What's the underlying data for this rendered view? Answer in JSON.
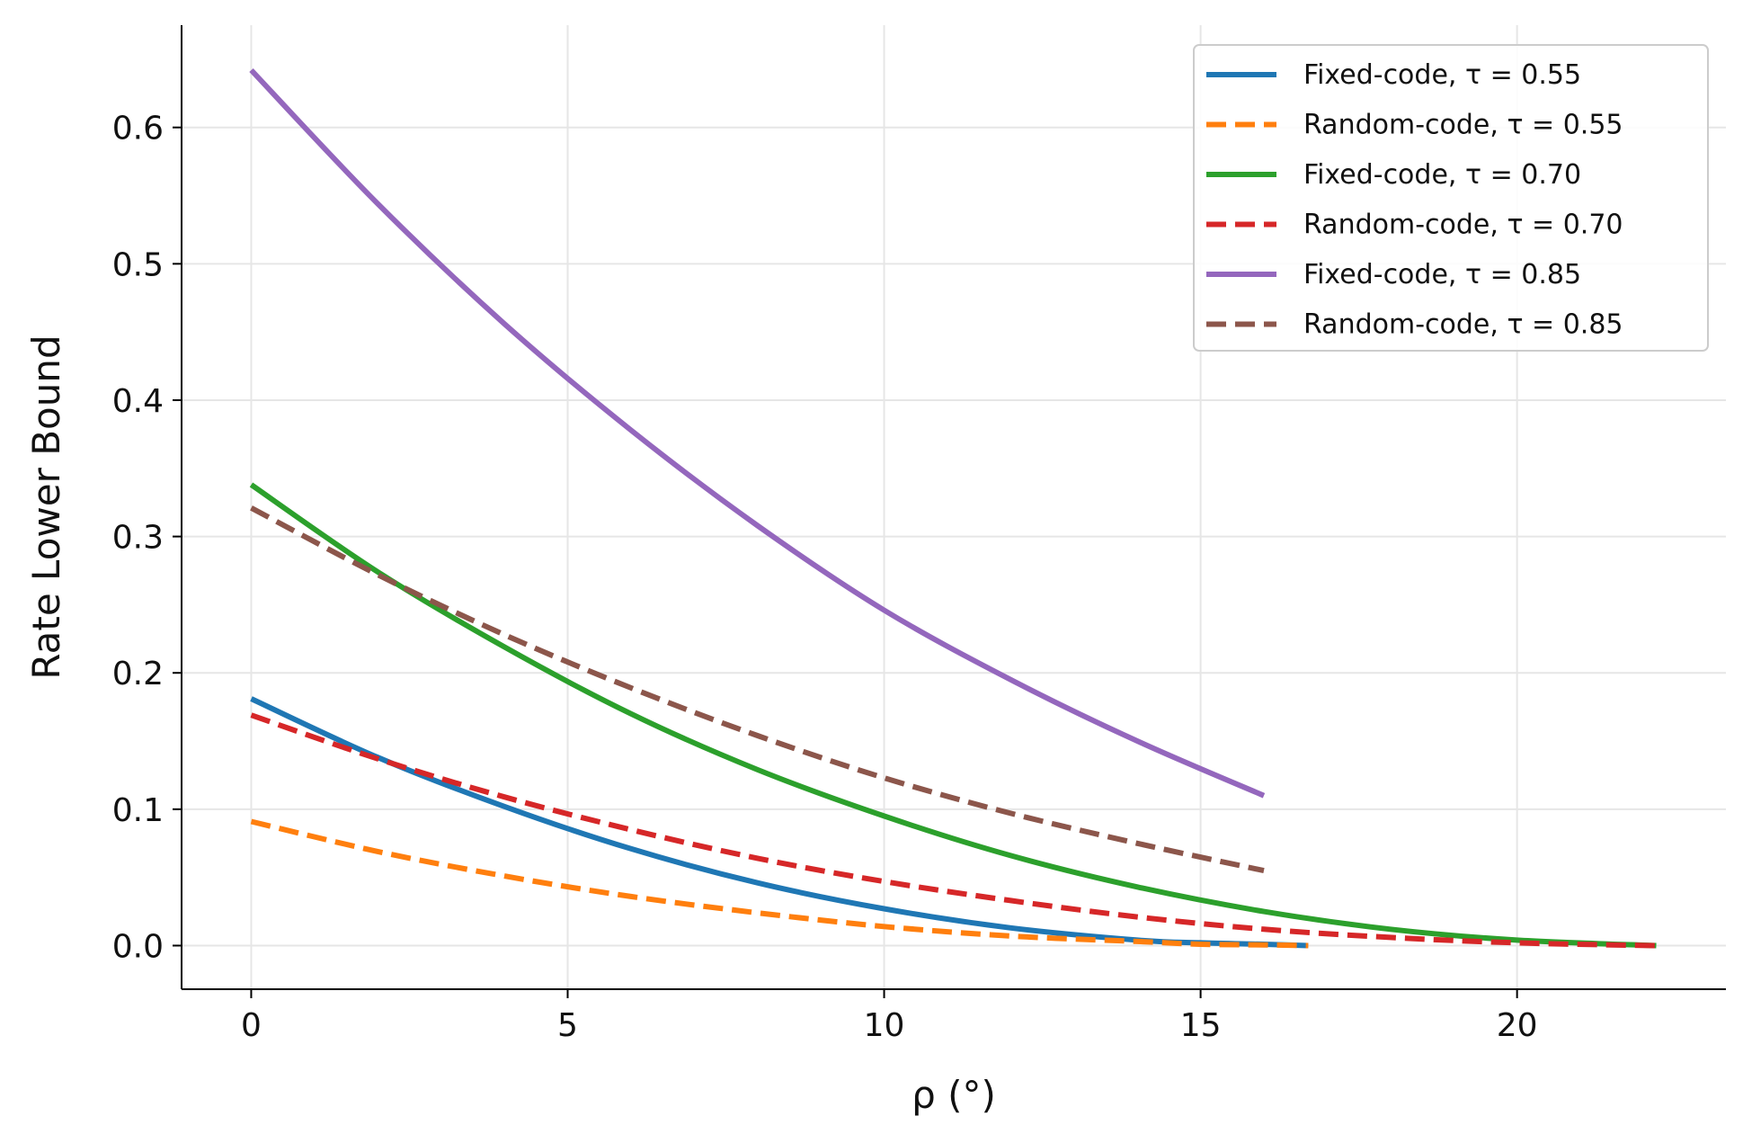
{
  "chart_data": {
    "type": "line",
    "title": "",
    "xlabel": "ρ (°)",
    "ylabel": "Rate Lower Bound",
    "xlim": [
      -1.1,
      23.3
    ],
    "ylim": [
      -0.032,
      0.675
    ],
    "xticks": [
      0,
      5,
      10,
      15,
      20
    ],
    "yticks": [
      0.0,
      0.1,
      0.2,
      0.3,
      0.4,
      0.5,
      0.6
    ],
    "grid": true,
    "legend_position": "top-right",
    "series": [
      {
        "name": "Fixed-code, τ = 0.55",
        "color": "#1f77b4",
        "dash": "solid",
        "x": [
          0,
          2,
          4,
          6,
          8,
          10,
          12,
          14,
          15,
          16,
          16.7
        ],
        "y": [
          0.181,
          0.138,
          0.102,
          0.071,
          0.046,
          0.027,
          0.013,
          0.004,
          0.002,
          0.001,
          0.0
        ]
      },
      {
        "name": "Random-code, τ = 0.55",
        "color": "#ff7f0e",
        "dash": "dashed",
        "x": [
          0,
          2,
          4,
          6,
          8,
          10,
          12,
          14,
          15,
          16,
          16.7
        ],
        "y": [
          0.091,
          0.069,
          0.051,
          0.036,
          0.024,
          0.014,
          0.007,
          0.003,
          0.001,
          0.0005,
          0.0
        ]
      },
      {
        "name": "Fixed-code, τ = 0.70",
        "color": "#2ca02c",
        "dash": "solid",
        "x": [
          0,
          2,
          4,
          6,
          8,
          10,
          12,
          14,
          16,
          18,
          20,
          22.2
        ],
        "y": [
          0.338,
          0.274,
          0.219,
          0.17,
          0.129,
          0.095,
          0.066,
          0.043,
          0.025,
          0.012,
          0.004,
          0.0
        ]
      },
      {
        "name": "Random-code, τ = 0.70",
        "color": "#d62728",
        "dash": "dashed",
        "x": [
          0,
          2,
          4,
          6,
          8,
          10,
          12,
          14,
          16,
          18,
          20,
          22.2
        ],
        "y": [
          0.169,
          0.137,
          0.109,
          0.085,
          0.064,
          0.047,
          0.033,
          0.021,
          0.012,
          0.006,
          0.002,
          0.0
        ]
      },
      {
        "name": "Fixed-code, τ = 0.85",
        "color": "#9467bd",
        "dash": "solid",
        "x": [
          0,
          2,
          4,
          6,
          8,
          10,
          12,
          14,
          16
        ],
        "y": [
          0.642,
          0.544,
          0.456,
          0.378,
          0.308,
          0.246,
          0.195,
          0.15,
          0.11
        ]
      },
      {
        "name": "Random-code, τ = 0.85",
        "color": "#8c564b",
        "dash": "dashed",
        "x": [
          0,
          2,
          4,
          6,
          8,
          10,
          12,
          14,
          16
        ],
        "y": [
          0.321,
          0.272,
          0.228,
          0.189,
          0.154,
          0.123,
          0.097,
          0.075,
          0.055
        ]
      }
    ]
  }
}
